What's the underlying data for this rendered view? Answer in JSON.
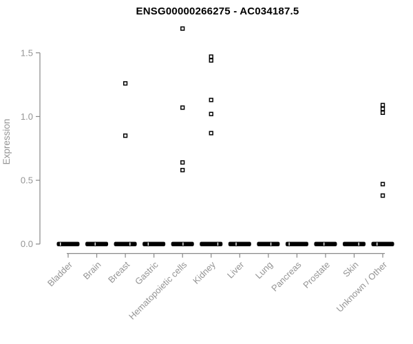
{
  "chart_data": {
    "type": "scatter",
    "title": "ENSG00000266275 - AC034187.5",
    "ylabel": "Expression",
    "xlabel": "",
    "categories": [
      "Bladder",
      "Brain",
      "Breast",
      "Gastric",
      "Hematopoietic cells",
      "Kidney",
      "Liver",
      "Lung",
      "Pancreas",
      "Prostate",
      "Skin",
      "Unknown / Other"
    ],
    "yticks": [
      0.0,
      0.5,
      1.0,
      1.5
    ],
    "ylim": [
      0.0,
      1.75
    ],
    "grid": false,
    "legend": null,
    "marker": "open-square",
    "nonzero_points": {
      "Breast": [
        1.26,
        0.85
      ],
      "Hematopoietic cells": [
        1.69,
        1.07,
        0.64,
        0.58
      ],
      "Kidney": [
        1.47,
        1.44,
        1.13,
        1.02,
        0.87
      ],
      "Unknown / Other": [
        1.09,
        1.06,
        1.03,
        0.47,
        0.38
      ]
    },
    "zero_value": 0.0,
    "zero_cluster_note": "every category shows a dense bar of overlapping points at expression 0.0",
    "colors": {
      "marker": "#000000",
      "axis_line": "#878787",
      "tick_text": "#949494",
      "title_text": "#000000",
      "background": "#ffffff"
    }
  }
}
